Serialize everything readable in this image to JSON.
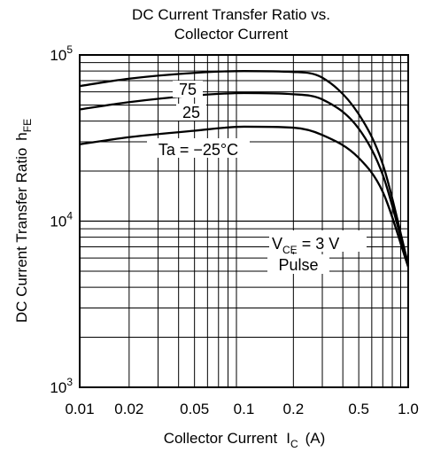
{
  "chart_data": {
    "type": "line",
    "title_lines": [
      "DC Current Transfer Ratio vs.",
      "Collector Current"
    ],
    "xlabel": {
      "main": "Collector Current",
      "symbol": "I",
      "subscript": "C",
      "unit": "(A)"
    },
    "ylabel": {
      "main": "DC Current Transfer Ratio",
      "symbol": "h",
      "subscript": "FE"
    },
    "x_scale": "log",
    "y_scale": "log",
    "xlim": [
      0.01,
      1.0
    ],
    "ylim": [
      1000,
      100000
    ],
    "x_ticks": [
      {
        "value": 0.01,
        "label": "0.01"
      },
      {
        "value": 0.02,
        "label": "0.02"
      },
      {
        "value": 0.05,
        "label": "0.05"
      },
      {
        "value": 0.1,
        "label": "0.1"
      },
      {
        "value": 0.2,
        "label": "0.2"
      },
      {
        "value": 0.5,
        "label": "0.5"
      },
      {
        "value": 1.0,
        "label": "1.0"
      }
    ],
    "y_ticks": [
      {
        "value": 1000,
        "base": "10",
        "exp": "3"
      },
      {
        "value": 10000,
        "base": "10",
        "exp": "4"
      },
      {
        "value": 100000,
        "base": "10",
        "exp": "5"
      }
    ],
    "grid": true,
    "series": [
      {
        "name": "75",
        "x": [
          0.01,
          0.02,
          0.05,
          0.1,
          0.2,
          0.3,
          0.5,
          0.7,
          1.0
        ],
        "values": [
          65000,
          72000,
          78000,
          80000,
          79000,
          73000,
          44000,
          22000,
          5500
        ]
      },
      {
        "name": "25",
        "x": [
          0.01,
          0.02,
          0.05,
          0.1,
          0.2,
          0.3,
          0.5,
          0.7,
          1.0
        ],
        "values": [
          47000,
          52000,
          57000,
          59000,
          58000,
          54000,
          36000,
          19000,
          5400
        ]
      },
      {
        "name": "Ta = −25°C",
        "x": [
          0.01,
          0.02,
          0.05,
          0.1,
          0.2,
          0.3,
          0.5,
          0.7,
          1.0
        ],
        "values": [
          29000,
          32000,
          35000,
          37000,
          36500,
          33000,
          24000,
          15000,
          5300
        ]
      }
    ],
    "annotations": {
      "vce_symbol": "V",
      "vce_subscript": "CE",
      "vce_value": " = 3 V",
      "pulse": "Pulse"
    }
  }
}
